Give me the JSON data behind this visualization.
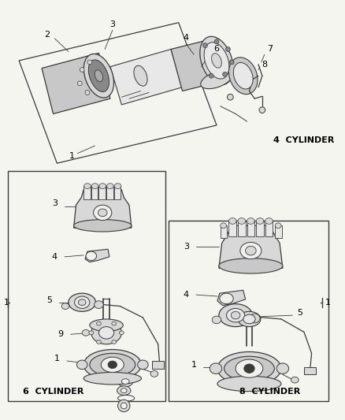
{
  "bg_color": "#f5f5f0",
  "line_color": "#3a3a3a",
  "four_cyl_label": "4  CYLINDER",
  "six_cyl_label": "6  CYLINDER",
  "eight_cyl_label": "8  CYLINDER",
  "fig_width": 4.39,
  "fig_height": 5.33,
  "dpi": 100,
  "gray_fill": "#d8d8d8",
  "dark_fill": "#b0b0b0",
  "mid_fill": "#c8c8c8",
  "light_fill": "#e8e8e8"
}
